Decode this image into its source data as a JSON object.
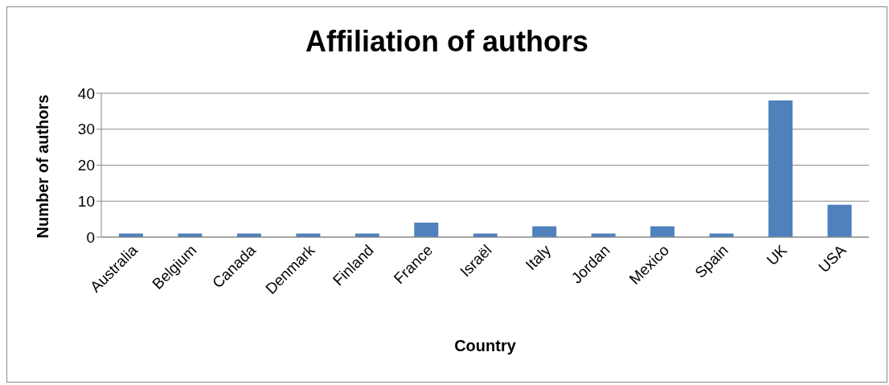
{
  "chart_data": {
    "type": "bar",
    "title": "Affiliation of authors",
    "xlabel": "Country",
    "ylabel": "Number of authors",
    "categories": [
      "Australia",
      "Belgium",
      "Canada",
      "Denmark",
      "Finland",
      "France",
      "Israël",
      "Italy",
      "Jordan",
      "Mexico",
      "Spain",
      "UK",
      "USA"
    ],
    "values": [
      1,
      1,
      1,
      1,
      1,
      4,
      1,
      3,
      1,
      3,
      1,
      38,
      9
    ],
    "color": "#4f81bd",
    "ylim": [
      0,
      40
    ],
    "yticks": [
      0,
      10,
      20,
      30,
      40
    ],
    "grid": "y"
  }
}
